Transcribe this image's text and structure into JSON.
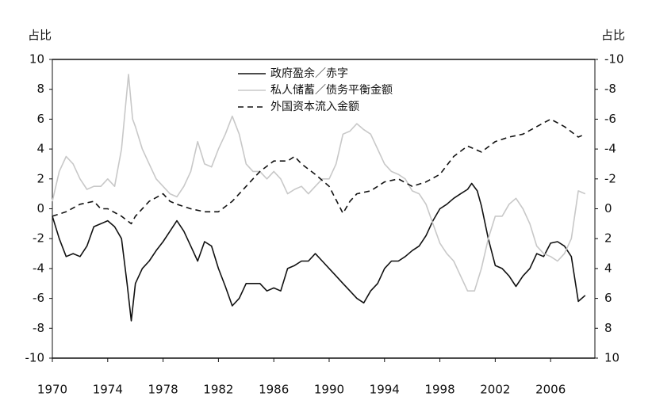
{
  "chart_data": {
    "type": "line",
    "y_axis_label": "占比",
    "y2_axis_label": "占比",
    "xlim": [
      1970,
      2009.2
    ],
    "xticks": [
      1970,
      1974,
      1978,
      1982,
      1986,
      1990,
      1994,
      1998,
      2002,
      2006
    ],
    "ylim": [
      -10,
      10
    ],
    "yticks": [
      10,
      8,
      6,
      4,
      2,
      0,
      -2,
      -4,
      -6,
      -8,
      -10
    ],
    "y2lim": [
      10,
      -10
    ],
    "y2ticks": [
      -10,
      -8,
      -6,
      -4,
      -2,
      0,
      2,
      4,
      6,
      8,
      10
    ],
    "legend": "upper center",
    "series": [
      {
        "name": "政府盈余／赤字",
        "color": "#111111",
        "dash": false,
        "x": [
          1970,
          1970.5,
          1971,
          1971.5,
          1972,
          1972.5,
          1973,
          1973.5,
          1974,
          1974.5,
          1975,
          1975.4,
          1975.7,
          1976,
          1976.5,
          1977,
          1977.5,
          1978,
          1978.5,
          1979,
          1979.5,
          1980,
          1980.5,
          1981,
          1981.5,
          1982,
          1982.5,
          1983,
          1983.5,
          1984,
          1984.5,
          1985,
          1985.5,
          1986,
          1986.5,
          1987,
          1987.5,
          1988,
          1988.5,
          1989,
          1989.5,
          1990,
          1990.5,
          1991,
          1991.5,
          1992,
          1992.5,
          1993,
          1993.5,
          1994,
          1994.5,
          1995,
          1995.5,
          1996,
          1996.5,
          1997,
          1997.5,
          1998,
          1998.5,
          1999,
          1999.5,
          2000,
          2000.3,
          2000.7,
          2001,
          2001.5,
          2002,
          2002.5,
          2003,
          2003.5,
          2004,
          2004.5,
          2005,
          2005.5,
          2006,
          2006.5,
          2007,
          2007.5,
          2008,
          2008.5
        ],
        "values": [
          -0.5,
          -2,
          -3.2,
          -3,
          -3.2,
          -2.5,
          -1.2,
          -1,
          -0.8,
          -1.2,
          -2,
          -5,
          -7.5,
          -5,
          -4,
          -3.5,
          -2.8,
          -2.2,
          -1.5,
          -0.8,
          -1.5,
          -2.5,
          -3.5,
          -2.2,
          -2.5,
          -4,
          -5.2,
          -6.5,
          -6,
          -5,
          -5,
          -5,
          -5.5,
          -5.3,
          -5.5,
          -4,
          -3.8,
          -3.5,
          -3.5,
          -3,
          -3.5,
          -4,
          -4.5,
          -5,
          -5.5,
          -6,
          -6.3,
          -5.5,
          -5,
          -4,
          -3.5,
          -3.5,
          -3.2,
          -2.8,
          -2.5,
          -1.8,
          -0.8,
          0,
          0.3,
          0.7,
          1,
          1.3,
          1.7,
          1.2,
          0.2,
          -2,
          -3.8,
          -4,
          -4.5,
          -5.2,
          -4.5,
          -4,
          -3,
          -3.2,
          -2.3,
          -2.2,
          -2.5,
          -3.2,
          -6.2,
          -5.8
        ]
      },
      {
        "name": "私人储蓄／债务平衡金额",
        "color": "#c8c8c8",
        "dash": false,
        "x": [
          1970,
          1970.5,
          1971,
          1971.5,
          1972,
          1972.5,
          1973,
          1973.5,
          1974,
          1974.5,
          1975,
          1975.5,
          1975.8,
          1976,
          1976.5,
          1977,
          1977.5,
          1978,
          1978.5,
          1979,
          1979.5,
          1980,
          1980.5,
          1981,
          1981.5,
          1982,
          1982.5,
          1983,
          1983.5,
          1984,
          1984.5,
          1985,
          1985.5,
          1986,
          1986.5,
          1987,
          1987.5,
          1988,
          1988.5,
          1989,
          1989.5,
          1990,
          1990.5,
          1991,
          1991.5,
          1992,
          1992.5,
          1993,
          1993.5,
          1994,
          1994.5,
          1995,
          1995.5,
          1996,
          1996.5,
          1997,
          1997.5,
          1998,
          1998.5,
          1999,
          1999.5,
          2000,
          2000.5,
          2001,
          2001.5,
          2002,
          2002.5,
          2003,
          2003.5,
          2004,
          2004.5,
          2005,
          2005.5,
          2006,
          2006.5,
          2007,
          2007.5,
          2008,
          2008.5
        ],
        "values": [
          0.5,
          2.5,
          3.5,
          3,
          2,
          1.3,
          1.5,
          1.5,
          2,
          1.5,
          4,
          9,
          6,
          5.5,
          4,
          3,
          2,
          1.5,
          1,
          0.8,
          1.5,
          2.5,
          4.5,
          3,
          2.8,
          4,
          5,
          6.2,
          5,
          3,
          2.5,
          2.5,
          2,
          2.5,
          2,
          1,
          1.3,
          1.5,
          1,
          1.5,
          2,
          2,
          3,
          5,
          5.2,
          5.7,
          5.3,
          5,
          4,
          3,
          2.5,
          2.3,
          2,
          1.2,
          1,
          0.3,
          -1,
          -2.3,
          -3,
          -3.5,
          -4.5,
          -5.5,
          -5.5,
          -4,
          -2,
          -0.5,
          -0.5,
          0.3,
          0.7,
          0,
          -1,
          -2.5,
          -3,
          -3.2,
          -3.5,
          -3,
          -2,
          1.2,
          1
        ]
      },
      {
        "name": "外国资本流入金额",
        "color": "#111111",
        "dash": true,
        "x": [
          1970,
          1971,
          1972,
          1973,
          1973.5,
          1974,
          1975,
          1975.7,
          1976,
          1977,
          1978,
          1978.5,
          1979,
          1980,
          1981,
          1982,
          1983,
          1984,
          1985,
          1986,
          1987,
          1987.5,
          1988,
          1989,
          1990,
          1991,
          1991.5,
          1992,
          1993,
          1994,
          1995,
          1996,
          1997,
          1998,
          1999,
          2000,
          2001,
          2002,
          2003,
          2004,
          2005,
          2006,
          2007,
          2008,
          2008.5
        ],
        "values": [
          -0.5,
          -0.2,
          0.3,
          0.5,
          0,
          0,
          -0.5,
          -1,
          -0.5,
          0.5,
          1,
          0.5,
          0.3,
          0,
          -0.2,
          -0.2,
          0.5,
          1.5,
          2.5,
          3.2,
          3.2,
          3.5,
          3,
          2.3,
          1.5,
          -0.3,
          0.5,
          1,
          1.2,
          1.8,
          2,
          1.5,
          1.8,
          2.3,
          3.5,
          4.2,
          3.8,
          4.5,
          4.8,
          5,
          5.5,
          6,
          5.5,
          4.8,
          5
        ]
      }
    ]
  }
}
